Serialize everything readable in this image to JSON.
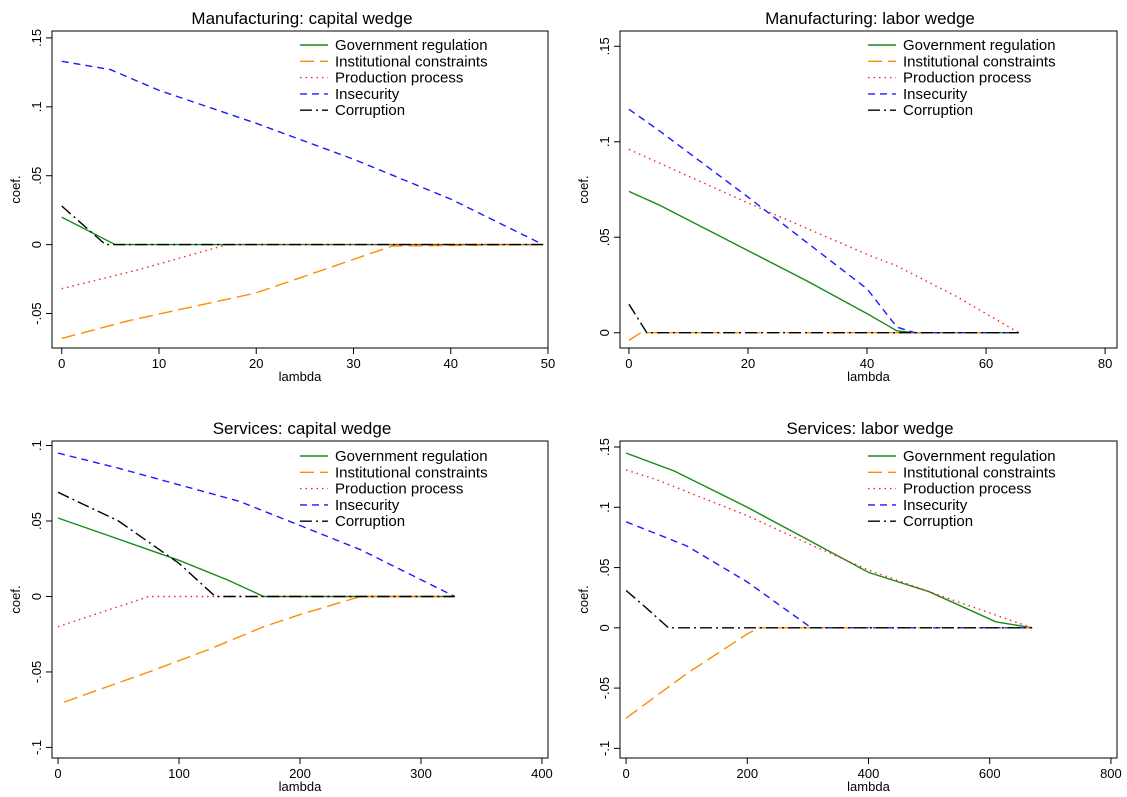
{
  "figure": {
    "legend_order": [
      "Government regulation",
      "Institutional constraints",
      "Production process",
      "Insecurity",
      "Corruption"
    ]
  },
  "chart_data": [
    {
      "type": "line",
      "title": "Manufacturing: capital wedge",
      "xlabel": "lambda",
      "ylabel": "coef.",
      "xlim": [
        -1,
        50
      ],
      "ylim": [
        -0.075,
        0.155
      ],
      "xticks": [
        0,
        10,
        20,
        30,
        40,
        50
      ],
      "xtick_labels": [
        "0",
        "10",
        "20",
        "30",
        "40",
        "50"
      ],
      "yticks": [
        -0.05,
        0,
        0.05,
        0.1,
        0.15
      ],
      "ytick_labels": [
        "-.05",
        "0",
        ".05",
        ".1",
        ".15"
      ],
      "grid": false,
      "legend_position": "top-right",
      "series": [
        {
          "name": "Government regulation",
          "color": "#1a8a1a",
          "dash": "solid",
          "points": [
            [
              0,
              0.02
            ],
            [
              5.5,
              0.0
            ],
            [
              49.5,
              0.0
            ]
          ]
        },
        {
          "name": "Institutional constraints",
          "color": "#ff8c00",
          "dash": "longdash",
          "points": [
            [
              0,
              -0.068
            ],
            [
              7,
              -0.055
            ],
            [
              20,
              -0.035
            ],
            [
              34,
              -0.001
            ],
            [
              49.5,
              0.0
            ]
          ]
        },
        {
          "name": "Production process",
          "color": "#ff2020",
          "dash": "dot",
          "points": [
            [
              0,
              -0.032
            ],
            [
              8,
              -0.018
            ],
            [
              17,
              0.0
            ],
            [
              49.5,
              0.0
            ]
          ]
        },
        {
          "name": "Insecurity",
          "color": "#1a1aff",
          "dash": "dash",
          "points": [
            [
              0,
              0.133
            ],
            [
              5,
              0.127
            ],
            [
              7,
              0.121
            ],
            [
              10,
              0.112
            ],
            [
              20,
              0.088
            ],
            [
              30,
              0.062
            ],
            [
              40,
              0.033
            ],
            [
              49.5,
              0.0
            ]
          ]
        },
        {
          "name": "Corruption",
          "color": "#000000",
          "dash": "dashdot",
          "points": [
            [
              0,
              0.028
            ],
            [
              4.5,
              0.0
            ],
            [
              49.5,
              0.0
            ]
          ]
        }
      ]
    },
    {
      "type": "line",
      "title": "Manufacturing: labor wedge",
      "xlabel": "lambda",
      "ylabel": "coef.",
      "xlim": [
        -1.5,
        82
      ],
      "ylim": [
        -0.008,
        0.158
      ],
      "xticks": [
        0,
        20,
        40,
        60,
        80
      ],
      "xtick_labels": [
        "0",
        "20",
        "40",
        "60",
        "80"
      ],
      "yticks": [
        0,
        0.05,
        0.1,
        0.15
      ],
      "ytick_labels": [
        "0",
        ".05",
        ".1",
        ".15"
      ],
      "grid": false,
      "legend_position": "top-right",
      "series": [
        {
          "name": "Government regulation",
          "color": "#1a8a1a",
          "dash": "solid",
          "points": [
            [
              0,
              0.074
            ],
            [
              5,
              0.067
            ],
            [
              20,
              0.043
            ],
            [
              30,
              0.027
            ],
            [
              40,
              0.01
            ],
            [
              45,
              0.001
            ],
            [
              48,
              0.0
            ],
            [
              65.5,
              0.0
            ]
          ]
        },
        {
          "name": "Institutional constraints",
          "color": "#ff8c00",
          "dash": "longdash",
          "points": [
            [
              0,
              -0.004
            ],
            [
              2,
              0.0
            ],
            [
              65.5,
              0.0
            ]
          ]
        },
        {
          "name": "Production process",
          "color": "#ff2020",
          "dash": "dot",
          "points": [
            [
              0,
              0.096
            ],
            [
              20,
              0.068
            ],
            [
              40,
              0.041
            ],
            [
              45,
              0.035
            ],
            [
              55,
              0.019
            ],
            [
              65.5,
              0.0
            ]
          ]
        },
        {
          "name": "Insecurity",
          "color": "#1a1aff",
          "dash": "dash",
          "points": [
            [
              0,
              0.117
            ],
            [
              5,
              0.106
            ],
            [
              20,
              0.071
            ],
            [
              30,
              0.047
            ],
            [
              40,
              0.023
            ],
            [
              45,
              0.003
            ],
            [
              48,
              0.0
            ],
            [
              65.5,
              0.0
            ]
          ]
        },
        {
          "name": "Corruption",
          "color": "#000000",
          "dash": "dashdot",
          "points": [
            [
              0,
              0.015
            ],
            [
              3,
              0.0
            ],
            [
              65.5,
              0.0
            ]
          ]
        }
      ]
    },
    {
      "type": "line",
      "title": "Services: capital wedge",
      "xlabel": "lambda",
      "ylabel": "coef.",
      "xlim": [
        -5,
        405
      ],
      "ylim": [
        -0.107,
        0.103
      ],
      "xticks": [
        0,
        100,
        200,
        300,
        400
      ],
      "xtick_labels": [
        "0",
        "100",
        "200",
        "300",
        "400"
      ],
      "yticks": [
        -0.1,
        -0.05,
        0,
        0.05,
        0.1
      ],
      "ytick_labels": [
        "-.1",
        "-.05",
        "0",
        ".05",
        ".1"
      ],
      "grid": false,
      "legend_position": "top-right",
      "series": [
        {
          "name": "Government regulation",
          "color": "#1a8a1a",
          "dash": "solid",
          "points": [
            [
              0,
              0.052
            ],
            [
              50,
              0.038
            ],
            [
              100,
              0.024
            ],
            [
              140,
              0.011
            ],
            [
              170,
              0.0
            ],
            [
              328,
              0.0
            ]
          ]
        },
        {
          "name": "Institutional constraints",
          "color": "#ff8c00",
          "dash": "longdash",
          "points": [
            [
              5,
              -0.07
            ],
            [
              75,
              -0.05
            ],
            [
              125,
              -0.035
            ],
            [
              170,
              -0.02
            ],
            [
              200,
              -0.012
            ],
            [
              250,
              0.0
            ],
            [
              328,
              0.0
            ]
          ]
        },
        {
          "name": "Production process",
          "color": "#ff2020",
          "dash": "dot",
          "points": [
            [
              0,
              -0.02
            ],
            [
              45,
              -0.008
            ],
            [
              75,
              0.0
            ],
            [
              328,
              0.0
            ]
          ]
        },
        {
          "name": "Insecurity",
          "color": "#1a1aff",
          "dash": "dash",
          "points": [
            [
              0,
              0.095
            ],
            [
              50,
              0.085
            ],
            [
              100,
              0.074
            ],
            [
              150,
              0.063
            ],
            [
              200,
              0.047
            ],
            [
              250,
              0.031
            ],
            [
              328,
              0.0
            ]
          ]
        },
        {
          "name": "Corruption",
          "color": "#000000",
          "dash": "dashdot",
          "points": [
            [
              0,
              0.069
            ],
            [
              50,
              0.05
            ],
            [
              100,
              0.022
            ],
            [
              130,
              0.0
            ],
            [
              328,
              0.0
            ]
          ]
        }
      ]
    },
    {
      "type": "line",
      "title": "Services: labor wedge",
      "xlabel": "lambda",
      "ylabel": "coef.",
      "xlim": [
        -10,
        810
      ],
      "ylim": [
        -0.108,
        0.155
      ],
      "xticks": [
        0,
        200,
        400,
        600,
        800
      ],
      "xtick_labels": [
        "0",
        "200",
        "400",
        "600",
        "800"
      ],
      "yticks": [
        -0.1,
        -0.05,
        0,
        0.05,
        0.1,
        0.15
      ],
      "ytick_labels": [
        "-.1",
        "-.05",
        "0",
        ".05",
        ".1",
        ".15"
      ],
      "grid": false,
      "legend_position": "top-right",
      "series": [
        {
          "name": "Government regulation",
          "color": "#1a8a1a",
          "dash": "solid",
          "points": [
            [
              0,
              0.145
            ],
            [
              80,
              0.13
            ],
            [
              200,
              0.1
            ],
            [
              300,
              0.073
            ],
            [
              400,
              0.046
            ],
            [
              500,
              0.03
            ],
            [
              610,
              0.005
            ],
            [
              670,
              0.0
            ]
          ]
        },
        {
          "name": "Institutional constraints",
          "color": "#ff8c00",
          "dash": "longdash",
          "points": [
            [
              0,
              -0.075
            ],
            [
              100,
              -0.038
            ],
            [
              200,
              -0.005
            ],
            [
              220,
              0.0
            ],
            [
              670,
              0.0
            ]
          ]
        },
        {
          "name": "Production process",
          "color": "#ff2020",
          "dash": "dot",
          "points": [
            [
              0,
              0.131
            ],
            [
              50,
              0.123
            ],
            [
              200,
              0.093
            ],
            [
              300,
              0.07
            ],
            [
              400,
              0.048
            ],
            [
              500,
              0.03
            ],
            [
              670,
              0.0
            ]
          ]
        },
        {
          "name": "Insecurity",
          "color": "#1a1aff",
          "dash": "dash",
          "points": [
            [
              0,
              0.088
            ],
            [
              50,
              0.078
            ],
            [
              100,
              0.068
            ],
            [
              200,
              0.038
            ],
            [
              300,
              0.002
            ],
            [
              310,
              0.0
            ],
            [
              670,
              0.0
            ]
          ]
        },
        {
          "name": "Corruption",
          "color": "#000000",
          "dash": "dashdot",
          "points": [
            [
              0,
              0.031
            ],
            [
              30,
              0.018
            ],
            [
              70,
              0.0
            ],
            [
              670,
              0.0
            ]
          ]
        }
      ]
    }
  ]
}
